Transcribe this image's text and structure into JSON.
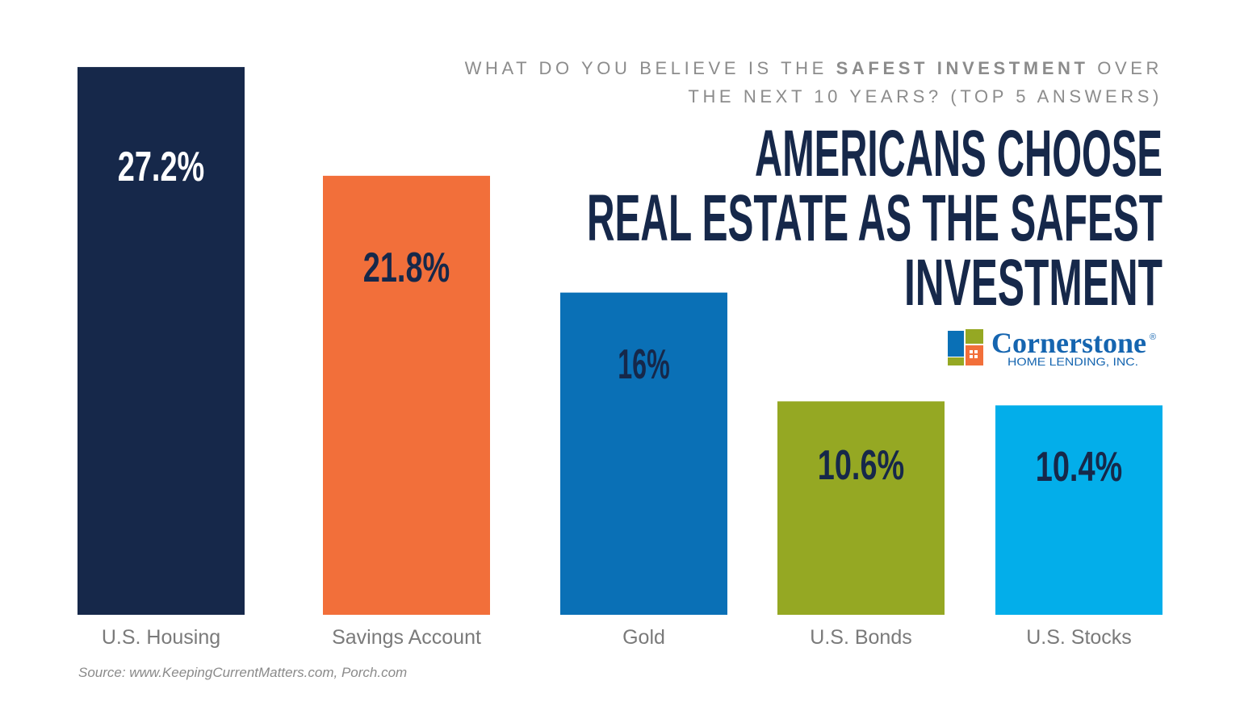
{
  "chart_data": {
    "type": "bar",
    "subtitle_lines": [
      [
        "WHAT DO YOU BELIEVE IS THE ",
        "SAFEST INVESTMENT",
        " OVER"
      ],
      [
        "THE NEXT 10 YEARS? (TOP 5 ANSWERS)"
      ]
    ],
    "title_lines": [
      "AMERICANS CHOOSE",
      "REAL ESTATE AS THE SAFEST",
      "INVESTMENT"
    ],
    "categories": [
      "U.S. Housing",
      "Savings Account",
      "Gold",
      "U.S. Bonds",
      "U.S. Stocks"
    ],
    "values": [
      27.2,
      21.8,
      16,
      10.6,
      10.4
    ],
    "value_labels": [
      "27.2%",
      "21.8%",
      "16%",
      "10.6%",
      "10.4%"
    ],
    "colors": [
      "#16284a",
      "#f26f3a",
      "#0a70b6",
      "#95a823",
      "#03aeea"
    ],
    "label_colors": [
      "#ffffff",
      "#16284a",
      "#16284a",
      "#16284a",
      "#16284a"
    ],
    "logo": {
      "name": "Cornerstone",
      "mark": "®",
      "tagline": "HOME LENDING, INC."
    },
    "source": "Source: www.KeepingCurrentMatters.com, Porch.com"
  }
}
